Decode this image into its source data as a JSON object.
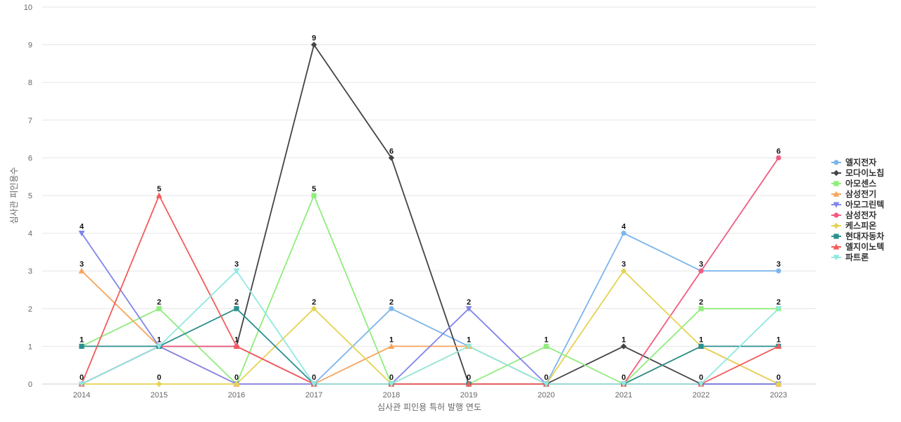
{
  "chart_data": {
    "type": "line",
    "title": "",
    "xlabel": "심사관 피인용 특허 발행 연도",
    "ylabel": "심사관 피인용수",
    "x": [
      "2014",
      "2015",
      "2016",
      "2017",
      "2018",
      "2019",
      "2020",
      "2021",
      "2022",
      "2023"
    ],
    "y_ticks": [
      "0",
      "1",
      "2",
      "3",
      "4",
      "5",
      "6",
      "7",
      "8",
      "9",
      "10"
    ],
    "ylim": [
      0,
      10
    ],
    "grid": true,
    "legend_position": "right",
    "series": [
      {
        "name": "엘지전자",
        "color": "#7cb5ec",
        "marker": "circle",
        "values": [
          0,
          1,
          1,
          0,
          2,
          1,
          0,
          4,
          3,
          3
        ]
      },
      {
        "name": "모다이노칩",
        "color": "#434348",
        "marker": "diamond",
        "values": [
          0,
          1,
          1,
          9,
          6,
          0,
          0,
          1,
          0,
          0
        ]
      },
      {
        "name": "아모센스",
        "color": "#90ed7d",
        "marker": "square",
        "values": [
          1,
          2,
          0,
          5,
          0,
          0,
          1,
          0,
          2,
          2
        ]
      },
      {
        "name": "삼성전기",
        "color": "#f7a35c",
        "marker": "triangle",
        "values": [
          3,
          1,
          0,
          0,
          1,
          1,
          0,
          0,
          1,
          0
        ]
      },
      {
        "name": "아모그린텍",
        "color": "#8085e9",
        "marker": "triangle-down",
        "values": [
          4,
          1,
          0,
          0,
          0,
          2,
          0,
          0,
          0,
          0
        ]
      },
      {
        "name": "삼성전자",
        "color": "#f15c80",
        "marker": "circle",
        "values": [
          0,
          1,
          1,
          0,
          0,
          0,
          0,
          0,
          3,
          6
        ]
      },
      {
        "name": "케스피온",
        "color": "#e4d354",
        "marker": "diamond",
        "values": [
          0,
          0,
          0,
          2,
          0,
          1,
          0,
          3,
          1,
          0
        ]
      },
      {
        "name": "현대자동차",
        "color": "#2b908f",
        "marker": "square",
        "values": [
          1,
          1,
          2,
          0,
          0,
          0,
          0,
          0,
          1,
          1
        ]
      },
      {
        "name": "엘지이노텍",
        "color": "#f45b5b",
        "marker": "triangle",
        "values": [
          0,
          5,
          1,
          0,
          0,
          0,
          0,
          0,
          0,
          1
        ]
      },
      {
        "name": "파트론",
        "color": "#91e8e1",
        "marker": "triangle-down",
        "values": [
          0,
          1,
          3,
          0,
          0,
          1,
          0,
          0,
          0,
          2
        ]
      }
    ],
    "point_labels": [
      {
        "x": "2014",
        "y": 4,
        "text": "4"
      },
      {
        "x": "2014",
        "y": 3,
        "text": "3"
      },
      {
        "x": "2014",
        "y": 1,
        "text": "1"
      },
      {
        "x": "2014",
        "y": 0,
        "text": "0"
      },
      {
        "x": "2015",
        "y": 5,
        "text": "5"
      },
      {
        "x": "2015",
        "y": 2,
        "text": "2"
      },
      {
        "x": "2015",
        "y": 1,
        "text": "1"
      },
      {
        "x": "2015",
        "y": 0,
        "text": "0"
      },
      {
        "x": "2016",
        "y": 3,
        "text": "3"
      },
      {
        "x": "2016",
        "y": 2,
        "text": "2"
      },
      {
        "x": "2016",
        "y": 1,
        "text": "1"
      },
      {
        "x": "2016",
        "y": 0,
        "text": "0"
      },
      {
        "x": "2017",
        "y": 9,
        "text": "9"
      },
      {
        "x": "2017",
        "y": 5,
        "text": "5"
      },
      {
        "x": "2017",
        "y": 2,
        "text": "2"
      },
      {
        "x": "2017",
        "y": 0,
        "text": "0"
      },
      {
        "x": "2018",
        "y": 6,
        "text": "6"
      },
      {
        "x": "2018",
        "y": 2,
        "text": "2"
      },
      {
        "x": "2018",
        "y": 1,
        "text": "1"
      },
      {
        "x": "2018",
        "y": 0,
        "text": "0"
      },
      {
        "x": "2019",
        "y": 2,
        "text": "2"
      },
      {
        "x": "2019",
        "y": 1,
        "text": "1"
      },
      {
        "x": "2019",
        "y": 0,
        "text": "0"
      },
      {
        "x": "2020",
        "y": 1,
        "text": "1"
      },
      {
        "x": "2020",
        "y": 0,
        "text": "0"
      },
      {
        "x": "2021",
        "y": 4,
        "text": "4"
      },
      {
        "x": "2021",
        "y": 3,
        "text": "3"
      },
      {
        "x": "2021",
        "y": 1,
        "text": "1"
      },
      {
        "x": "2021",
        "y": 0,
        "text": "0"
      },
      {
        "x": "2022",
        "y": 3,
        "text": "3"
      },
      {
        "x": "2022",
        "y": 2,
        "text": "2"
      },
      {
        "x": "2022",
        "y": 1,
        "text": "1"
      },
      {
        "x": "2022",
        "y": 0,
        "text": "0"
      },
      {
        "x": "2023",
        "y": 6,
        "text": "6"
      },
      {
        "x": "2023",
        "y": 3,
        "text": "3"
      },
      {
        "x": "2023",
        "y": 2,
        "text": "2"
      },
      {
        "x": "2023",
        "y": 1,
        "text": "1"
      },
      {
        "x": "2023",
        "y": 0,
        "text": "0"
      }
    ]
  }
}
